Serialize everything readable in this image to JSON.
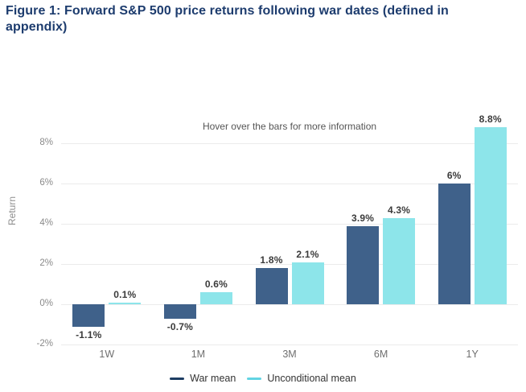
{
  "page": {
    "title": "Figure 1: Forward S&P 500 price returns following war dates (defined in appendix)"
  },
  "chart_data": {
    "type": "bar",
    "title": "Forward S&P 500 price returns following war dates",
    "annotation": "Hover over the bars for more information",
    "categories": [
      "1W",
      "1M",
      "3M",
      "6M",
      "1Y"
    ],
    "series": [
      {
        "name": "War mean",
        "values": [
          -1.1,
          -0.7,
          1.8,
          3.9,
          6.0
        ],
        "labels": [
          "-1.1%",
          "-0.7%",
          "1.8%",
          "3.9%",
          "6%"
        ],
        "color": "#3f618a",
        "legend_color": "#1d3d63"
      },
      {
        "name": "Unconditional mean",
        "values": [
          0.1,
          0.6,
          2.1,
          4.3,
          8.8
        ],
        "labels": [
          "0.1%",
          "0.6%",
          "2.1%",
          "4.3%",
          "8.8%"
        ],
        "color": "#8de5ea",
        "legend_color": "#62d4e3"
      }
    ],
    "xlabel": "",
    "ylabel": "Return",
    "yticks": [
      -2,
      0,
      2,
      4,
      6,
      8
    ],
    "ytick_labels": [
      "-2%",
      "0%",
      "2%",
      "4%",
      "6%",
      "8%"
    ],
    "ylim": [
      -2,
      10
    ],
    "grid": true,
    "legend_position": "bottom-center"
  },
  "colors": {
    "title": "#1d3c6e",
    "axis_text": "#8a8a8a",
    "value_label": "#3b3b3b",
    "annotation_text": "#555555",
    "gridline": "#ebebeb",
    "background": "#ffffff"
  }
}
